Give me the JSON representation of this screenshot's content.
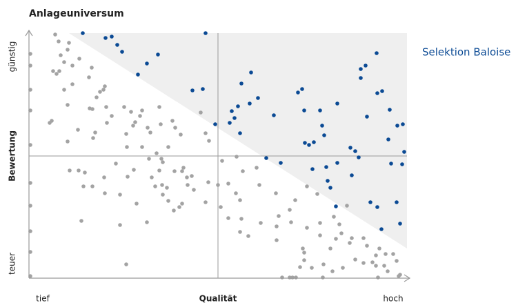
{
  "chart_data": {
    "type": "scatter",
    "title": "Anlageuniversum",
    "y_label": "Bewertung",
    "y_high_label": "günstig",
    "y_low_label": "teuer",
    "x_label": "Qualität",
    "x_low_label": "tief",
    "x_high_label": "hoch",
    "xlim": [
      0,
      548
    ],
    "ylim": [
      0,
      355
    ],
    "series": [
      {
        "color": "#a3a3a3",
        "x": [
          2,
          2,
          2,
          2,
          2,
          2,
          2,
          2,
          2,
          2,
          38,
          43,
          58,
          46,
          51,
          56,
          35,
          40,
          44,
          63,
          73,
          91,
          87,
          63,
          51,
          103,
          108,
          98,
          56,
          88,
          92,
          112,
          33,
          30,
          71,
          56,
          96,
          113,
          120,
          138,
          148,
          161,
          172,
          151,
          154,
          141,
          142,
          164,
          189,
          164,
          176,
          191,
          208,
          212,
          220,
          202,
          249,
          256,
          261,
          185,
          189,
          194,
          178,
          183,
          193,
          200,
          194,
          202,
          222,
          211,
          222,
          229,
          230,
          239,
          236,
          224,
          218,
          210,
          171,
          156,
          132,
          110,
          92,
          79,
          72,
          81,
          59,
          76,
          132,
          141,
          109,
          143,
          126,
          301,
          280,
          274,
          260,
          278,
          289,
          310,
          330,
          300,
          306,
          289,
          308,
          306,
          318,
          336,
          359,
          362,
          378,
          334,
          358,
          386,
          380,
          403,
          422,
          442,
          450,
          453,
          465,
          468,
          485,
          490,
          508,
          503,
          517,
          528,
          533,
          515,
          503,
          520,
          538,
          427,
          437,
          440,
          397,
          399,
          399,
          410,
          393,
          367,
          378,
          382,
          387,
          426,
          455,
          473,
          485,
          498,
          506,
          536,
          422,
          445,
          461,
          359,
          403,
          418,
          256,
          192,
          152,
          110,
          93,
          174
        ],
        "values": [
          325,
          308,
          273,
          243,
          193,
          138,
          105,
          68,
          38,
          3,
          353,
          343,
          341,
          323,
          313,
          331,
          300,
          296,
          300,
          308,
          318,
          305,
          291,
          281,
          273,
          270,
          273,
          262,
          251,
          246,
          245,
          248,
          228,
          225,
          215,
          198,
          211,
          225,
          235,
          248,
          241,
          235,
          218,
          221,
          226,
          209,
          190,
          243,
          248,
          190,
          211,
          223,
          228,
          218,
          208,
          190,
          240,
          210,
          199,
          181,
          156,
          168,
          146,
          133,
          135,
          131,
          121,
          112,
          108,
          155,
          155,
          146,
          135,
          128,
          148,
          160,
          103,
          98,
          81,
          108,
          121,
          123,
          133,
          133,
          156,
          153,
          156,
          83,
          77,
          20,
          146,
          147,
          166,
          176,
          170,
          135,
          139,
          103,
          137,
          155,
          160,
          123,
          113,
          87,
          86,
          67,
          61,
          80,
          75,
          90,
          99,
          135,
          123,
          113,
          81,
          73,
          80,
          89,
          78,
          65,
          51,
          58,
          58,
          47,
          43,
          33,
          35,
          35,
          25,
          18,
          18,
          10,
          5,
          20,
          43,
          10,
          43,
          37,
          26,
          15,
          16,
          1,
          1,
          1,
          1,
          1,
          15,
          27,
          22,
          23,
          1,
          3,
          62,
          57,
          105,
          55,
          133,
          122,
          110,
          173,
          157,
          278,
          203,
          173
        ]
      },
      {
        "name": "Selektion Baloise",
        "color": "#0b4a94",
        "x": [
          78,
          111,
          120,
          128,
          135,
          187,
          171,
          158,
          256,
          237,
          252,
          270,
          291,
          298,
          294,
          303,
          308,
          322,
          320,
          332,
          306,
          355,
          390,
          396,
          399,
          422,
          425,
          447,
          428,
          406,
          413,
          400,
          466,
          473,
          481,
          488,
          481,
          504,
          505,
          512,
          523,
          534,
          542,
          521,
          544,
          490,
          344,
          365,
          411,
          431,
          447,
          468,
          525,
          541,
          433,
          437,
          445,
          495,
          505,
          533,
          538,
          511,
          478
        ],
        "values": [
          355,
          348,
          350,
          338,
          328,
          324,
          311,
          295,
          355,
          272,
          274,
          223,
          225,
          232,
          242,
          249,
          282,
          298,
          253,
          261,
          210,
          236,
          269,
          274,
          243,
          243,
          221,
          253,
          207,
          193,
          197,
          196,
          189,
          184,
          303,
          308,
          290,
          326,
          268,
          271,
          244,
          221,
          223,
          201,
          183,
          234,
          174,
          167,
          158,
          161,
          167,
          149,
          166,
          165,
          141,
          131,
          104,
          110,
          103,
          110,
          79,
          71,
          175
        ]
      }
    ]
  }
}
